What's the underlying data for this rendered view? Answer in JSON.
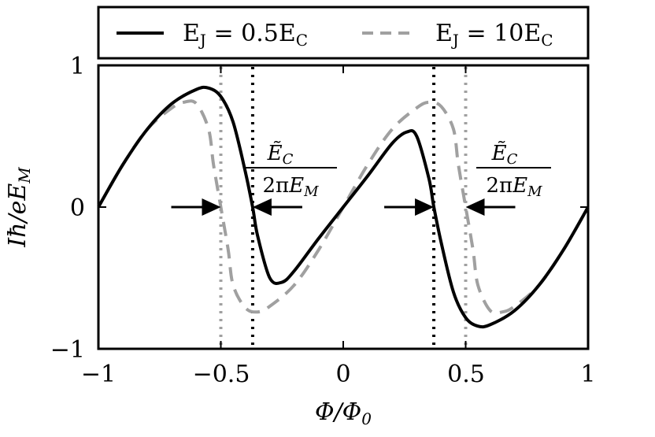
{
  "chart_data": {
    "type": "line",
    "xlabel": "Φ/Φ0",
    "ylabel": "Iħ/eEM",
    "xlim": [
      -1,
      1
    ],
    "ylim": [
      -1,
      1
    ],
    "xticks": [
      "−1",
      "−0.5",
      "0",
      "0.5",
      "1"
    ],
    "yticks": [
      "1",
      "0",
      "−1"
    ],
    "grid": false,
    "legend_position": "top (above plot)",
    "series": [
      {
        "name": "E_J = 0.5E_C",
        "color": "#000000",
        "linestyle": "solid",
        "x": [
          -1.0,
          -0.9,
          -0.8,
          -0.7,
          -0.6,
          -0.55,
          -0.5,
          -0.45,
          -0.4,
          -0.37,
          -0.35,
          -0.3,
          -0.25,
          -0.2,
          -0.1,
          0.0,
          0.1,
          0.2,
          0.26,
          0.3,
          0.35,
          0.37,
          0.4,
          0.45,
          0.5,
          0.55,
          0.6,
          0.7,
          0.8,
          0.9,
          1.0
        ],
        "y": [
          0.0,
          0.3,
          0.55,
          0.73,
          0.83,
          0.84,
          0.78,
          0.6,
          0.25,
          0.0,
          -0.2,
          -0.5,
          -0.53,
          -0.45,
          -0.22,
          0.0,
          0.22,
          0.45,
          0.53,
          0.5,
          0.2,
          0.0,
          -0.25,
          -0.6,
          -0.78,
          -0.84,
          -0.83,
          -0.73,
          -0.55,
          -0.3,
          0.0
        ]
      },
      {
        "name": "E_J = 10E_C",
        "color": "#a0a0a0",
        "linestyle": "dashed",
        "x": [
          -1.0,
          -0.9,
          -0.8,
          -0.7,
          -0.65,
          -0.6,
          -0.55,
          -0.53,
          -0.5,
          -0.47,
          -0.45,
          -0.4,
          -0.35,
          -0.3,
          -0.2,
          -0.1,
          0.0,
          0.1,
          0.2,
          0.3,
          0.35,
          0.4,
          0.45,
          0.47,
          0.5,
          0.53,
          0.55,
          0.6,
          0.65,
          0.7,
          0.8,
          0.9,
          1.0
        ],
        "y": [
          0.0,
          0.3,
          0.55,
          0.7,
          0.74,
          0.73,
          0.55,
          0.3,
          0.0,
          -0.3,
          -0.55,
          -0.71,
          -0.74,
          -0.7,
          -0.55,
          -0.3,
          0.0,
          0.3,
          0.55,
          0.7,
          0.74,
          0.71,
          0.55,
          0.3,
          0.0,
          -0.3,
          -0.55,
          -0.73,
          -0.74,
          -0.7,
          -0.55,
          -0.3,
          0.0
        ]
      }
    ],
    "vlines": [
      {
        "x": -0.5,
        "color": "#a0a0a0",
        "style": "dotted"
      },
      {
        "x": -0.37,
        "color": "#000000",
        "style": "dotted"
      },
      {
        "x": 0.37,
        "color": "#000000",
        "style": "dotted"
      },
      {
        "x": 0.5,
        "color": "#a0a0a0",
        "style": "dotted"
      }
    ],
    "annotations": [
      {
        "text_top": "ẼC",
        "text_bottom": "2πEM",
        "x": -0.37
      },
      {
        "text_top": "ẼC",
        "text_bottom": "2πEM",
        "x": 0.5
      }
    ],
    "arrow_pairs": [
      {
        "left_arrow_to": -0.5,
        "right_arrow_to": -0.37,
        "y": 0
      },
      {
        "left_arrow_to": 0.37,
        "right_arrow_to": 0.5,
        "y": 0
      }
    ]
  }
}
